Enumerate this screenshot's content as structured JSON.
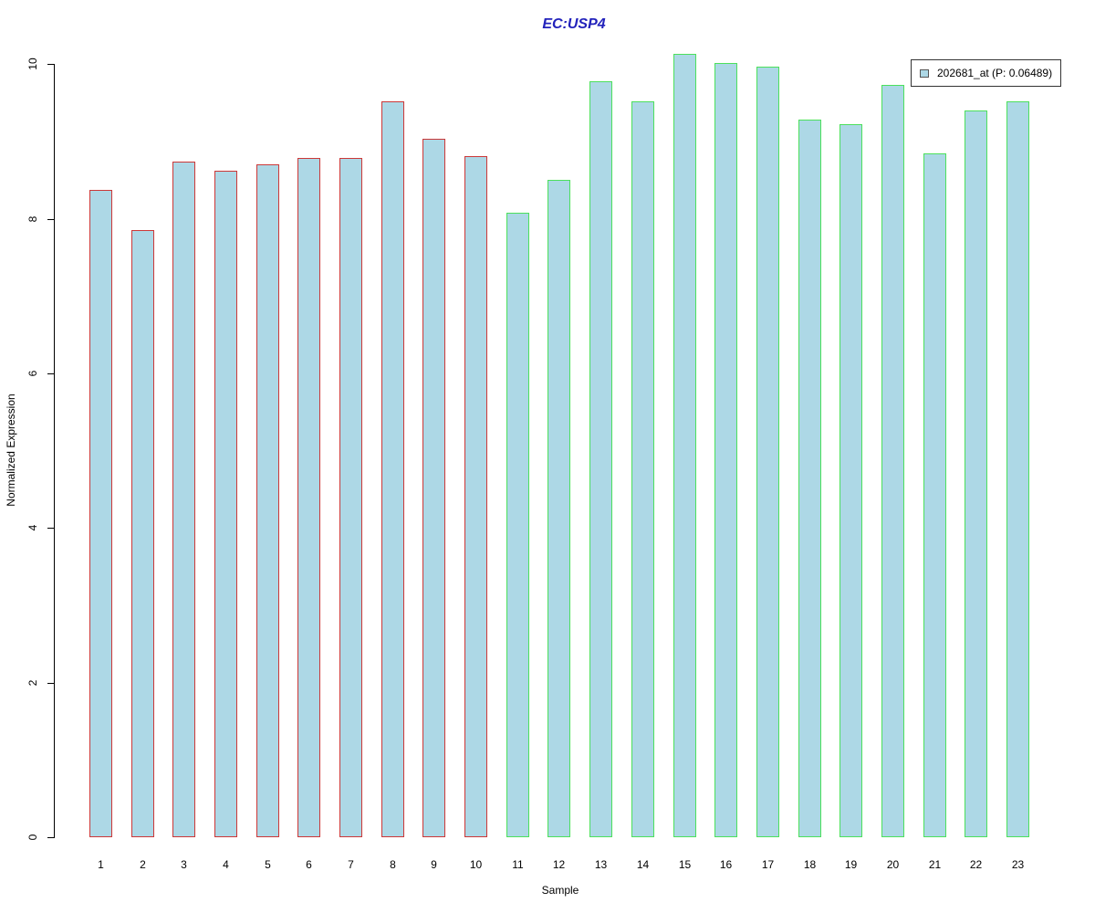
{
  "chart_data": {
    "type": "bar",
    "title": "EC:USP4",
    "xlabel": "Sample",
    "ylabel": "Normalized Expression",
    "ylim": [
      0,
      10
    ],
    "yticks": [
      0,
      2,
      4,
      6,
      8,
      10
    ],
    "grid": false,
    "legend": {
      "label": "202681_at (P: 0.06489)",
      "position": "top-right"
    },
    "categories": [
      "1",
      "2",
      "3",
      "4",
      "5",
      "6",
      "7",
      "8",
      "9",
      "10",
      "11",
      "12",
      "13",
      "14",
      "15",
      "16",
      "17",
      "18",
      "19",
      "20",
      "21",
      "22",
      "23"
    ],
    "values": [
      8.38,
      7.85,
      8.74,
      8.62,
      8.71,
      8.79,
      8.79,
      9.52,
      9.04,
      8.81,
      8.08,
      8.5,
      9.78,
      9.52,
      10.13,
      10.02,
      9.97,
      9.29,
      9.22,
      9.73,
      8.85,
      9.4,
      9.52
    ],
    "groups": [
      {
        "name": "samples-1-10",
        "start": 1,
        "end": 10,
        "border_color": "#cc3838"
      },
      {
        "name": "samples-11-23",
        "start": 11,
        "end": 23,
        "border_color": "#4ce05c"
      }
    ],
    "colors": {
      "bar_fill": "#add8e6",
      "group1_border": "#cc3838",
      "group2_border": "#4ce05c",
      "title": "#2222bb",
      "axis": "#000000",
      "legend_swatch_fill": "#add8e6",
      "legend_swatch_border": "#555555"
    }
  }
}
